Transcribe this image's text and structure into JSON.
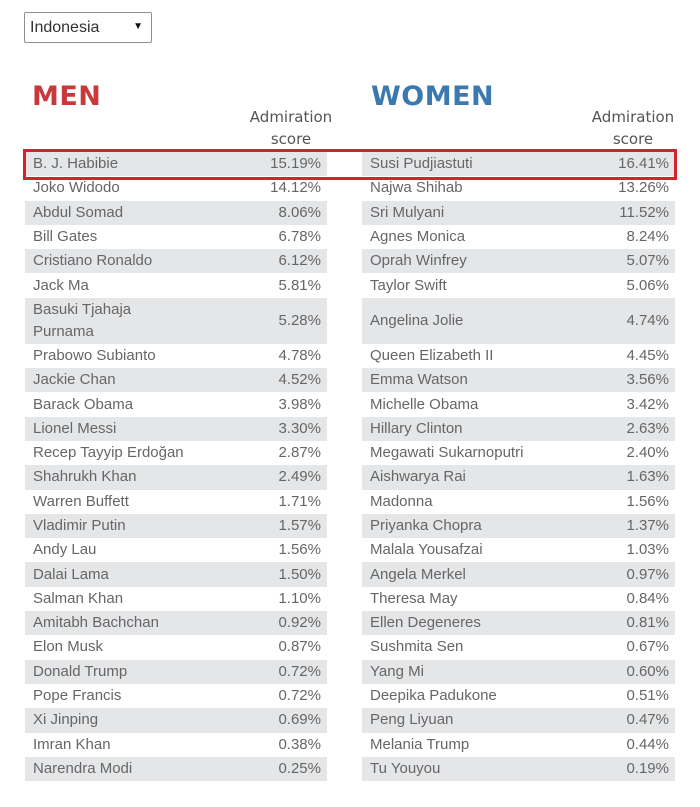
{
  "filter": {
    "selected": "Indonesia",
    "arrow_icon": "dropdown-triangle"
  },
  "men": {
    "title": "MEN",
    "score_header_line1": "Admiration",
    "score_header_line2": "score",
    "rows": [
      {
        "name": "B. J. Habibie",
        "score": "15.19%"
      },
      {
        "name": "Joko Widodo",
        "score": "14.12%"
      },
      {
        "name": "Abdul Somad",
        "score": "8.06%"
      },
      {
        "name": "Bill Gates",
        "score": "6.78%"
      },
      {
        "name": "Cristiano Ronaldo",
        "score": "6.12%"
      },
      {
        "name": "Jack Ma",
        "score": "5.81%"
      },
      {
        "name": "Basuki Tjahaja Purnama",
        "score": "5.28%"
      },
      {
        "name": "Prabowo Subianto",
        "score": "4.78%"
      },
      {
        "name": "Jackie Chan",
        "score": "4.52%"
      },
      {
        "name": "Barack Obama",
        "score": "3.98%"
      },
      {
        "name": "Lionel Messi",
        "score": "3.30%"
      },
      {
        "name": "Recep Tayyip Erdoğan",
        "score": "2.87%"
      },
      {
        "name": "Shahrukh Khan",
        "score": "2.49%"
      },
      {
        "name": "Warren Buffett",
        "score": "1.71%"
      },
      {
        "name": "Vladimir Putin",
        "score": "1.57%"
      },
      {
        "name": "Andy Lau",
        "score": "1.56%"
      },
      {
        "name": "Dalai Lama",
        "score": "1.50%"
      },
      {
        "name": "Salman Khan",
        "score": "1.10%"
      },
      {
        "name": "Amitabh Bachchan",
        "score": "0.92%"
      },
      {
        "name": "Elon Musk",
        "score": "0.87%"
      },
      {
        "name": "Donald Trump",
        "score": "0.72%"
      },
      {
        "name": "Pope Francis",
        "score": "0.72%"
      },
      {
        "name": "Xi Jinping",
        "score": "0.69%"
      },
      {
        "name": "Imran Khan",
        "score": "0.38%"
      },
      {
        "name": "Narendra Modi",
        "score": "0.25%"
      }
    ]
  },
  "women": {
    "title": "WOMEN",
    "score_header_line1": "Admiration",
    "score_header_line2": "score",
    "rows": [
      {
        "name": "Susi Pudjiastuti",
        "score": "16.41%"
      },
      {
        "name": "Najwa Shihab",
        "score": "13.26%"
      },
      {
        "name": "Sri Mulyani",
        "score": "11.52%"
      },
      {
        "name": "Agnes Monica",
        "score": "8.24%"
      },
      {
        "name": "Oprah Winfrey",
        "score": "5.07%"
      },
      {
        "name": "Taylor Swift",
        "score": "5.06%"
      },
      {
        "name": "Angelina Jolie",
        "score": "4.74%"
      },
      {
        "name": "Queen Elizabeth II",
        "score": "4.45%"
      },
      {
        "name": "Emma Watson",
        "score": "3.56%"
      },
      {
        "name": "Michelle Obama",
        "score": "3.42%"
      },
      {
        "name": "Hillary Clinton",
        "score": "2.63%"
      },
      {
        "name": "Megawati Sukarnoputri",
        "score": "2.40%"
      },
      {
        "name": "Aishwarya Rai",
        "score": "1.63%"
      },
      {
        "name": "Madonna",
        "score": "1.56%"
      },
      {
        "name": "Priyanka Chopra",
        "score": "1.37%"
      },
      {
        "name": "Malala Yousafzai",
        "score": "1.03%"
      },
      {
        "name": "Angela Merkel",
        "score": "0.97%"
      },
      {
        "name": "Theresa May",
        "score": "0.84%"
      },
      {
        "name": "Ellen Degeneres",
        "score": "0.81%"
      },
      {
        "name": "Sushmita Sen",
        "score": "0.67%"
      },
      {
        "name": "Yang Mi",
        "score": "0.60%"
      },
      {
        "name": "Deepika Padukone",
        "score": "0.51%"
      },
      {
        "name": "Peng Liyuan",
        "score": "0.47%"
      },
      {
        "name": "Melania Trump",
        "score": "0.44%"
      },
      {
        "name": "Tu Youyou",
        "score": "0.19%"
      }
    ]
  },
  "colors": {
    "men_title": "#c9383b",
    "women_title": "#3b7ab0",
    "row_stripe": "#e5e6e8",
    "highlight_border": "#d6222c"
  }
}
